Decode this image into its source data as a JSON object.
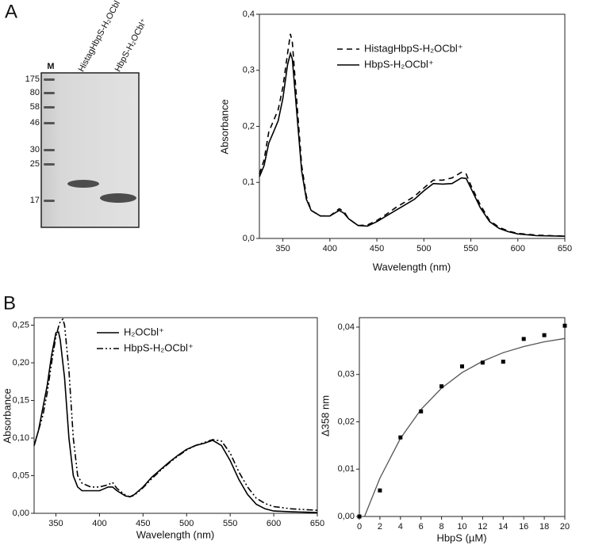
{
  "panel_labels": [
    "A",
    "B"
  ],
  "gel": {
    "marker_lane": "M",
    "lane_labels": [
      "HistagHbpS-H₂OCbl⁺",
      "HbpS-H₂OCbl⁺"
    ],
    "markers": [
      "175",
      "80",
      "58",
      "46",
      "30",
      "25",
      "17"
    ]
  },
  "chart_data": [
    {
      "type": "line",
      "xlabel": "Wavelength (nm)",
      "ylabel": "Absorbance",
      "x": [
        325,
        330,
        335,
        340,
        345,
        350,
        355,
        358,
        360,
        365,
        370,
        375,
        380,
        390,
        400,
        410,
        415,
        420,
        430,
        440,
        450,
        460,
        470,
        480,
        490,
        500,
        510,
        520,
        530,
        540,
        545,
        550,
        560,
        570,
        580,
        590,
        600,
        620,
        650
      ],
      "series": [
        {
          "name": "HistagHbpS-H₂OCbl⁺",
          "color": "#000000",
          "dash": "dashed",
          "values": [
            0.115,
            0.14,
            0.19,
            0.21,
            0.23,
            0.27,
            0.33,
            0.365,
            0.35,
            0.24,
            0.13,
            0.075,
            0.05,
            0.04,
            0.04,
            0.053,
            0.048,
            0.035,
            0.023,
            0.024,
            0.032,
            0.043,
            0.055,
            0.065,
            0.075,
            0.09,
            0.104,
            0.104,
            0.108,
            0.118,
            0.115,
            0.095,
            0.06,
            0.032,
            0.02,
            0.013,
            0.009,
            0.006,
            0.004
          ]
        },
        {
          "name": "HbpS-H₂OCbl⁺",
          "color": "#000000",
          "dash": "solid",
          "values": [
            0.11,
            0.13,
            0.17,
            0.19,
            0.21,
            0.25,
            0.31,
            0.33,
            0.32,
            0.22,
            0.12,
            0.07,
            0.05,
            0.04,
            0.04,
            0.05,
            0.045,
            0.035,
            0.023,
            0.022,
            0.03,
            0.04,
            0.05,
            0.06,
            0.07,
            0.085,
            0.098,
            0.097,
            0.098,
            0.108,
            0.107,
            0.09,
            0.055,
            0.03,
            0.018,
            0.012,
            0.008,
            0.005,
            0.004
          ]
        }
      ],
      "xlim": [
        325,
        650
      ],
      "xticks": [
        350,
        400,
        450,
        500,
        550,
        600,
        650
      ],
      "ylim": [
        0,
        0.4
      ],
      "yticks": [
        {
          "value": 0,
          "label": "0,0"
        },
        {
          "value": 0.1,
          "label": "0,1"
        },
        {
          "value": 0.2,
          "label": "0,2"
        },
        {
          "value": 0.3,
          "label": "0,3"
        },
        {
          "value": 0.4,
          "label": "0,4"
        }
      ],
      "legend": "upper right"
    },
    {
      "type": "line",
      "xlabel": "Wavelength (nm)",
      "ylabel": "Absorbance",
      "x": [
        325,
        330,
        335,
        340,
        345,
        350,
        353,
        355,
        358,
        360,
        365,
        370,
        375,
        380,
        390,
        400,
        410,
        415,
        420,
        430,
        435,
        440,
        450,
        460,
        470,
        480,
        490,
        500,
        510,
        520,
        530,
        540,
        550,
        560,
        570,
        580,
        590,
        600,
        620,
        650
      ],
      "series": [
        {
          "name": "H₂OCbl⁺",
          "color": "#000000",
          "dash": "solid",
          "values": [
            0.09,
            0.11,
            0.14,
            0.17,
            0.21,
            0.24,
            0.241,
            0.23,
            0.2,
            0.18,
            0.1,
            0.05,
            0.035,
            0.03,
            0.03,
            0.03,
            0.035,
            0.035,
            0.03,
            0.023,
            0.022,
            0.025,
            0.035,
            0.048,
            0.058,
            0.068,
            0.077,
            0.085,
            0.09,
            0.093,
            0.097,
            0.09,
            0.07,
            0.045,
            0.025,
            0.012,
            0.006,
            0.003,
            0.002,
            0.001
          ]
        },
        {
          "name": "HbpS-H₂OCbl⁺",
          "color": "#000000",
          "dash": "dash-dot-dot",
          "values": [
            0.09,
            0.11,
            0.13,
            0.16,
            0.2,
            0.235,
            0.248,
            0.255,
            0.258,
            0.25,
            0.19,
            0.1,
            0.05,
            0.04,
            0.035,
            0.035,
            0.038,
            0.041,
            0.033,
            0.024,
            0.022,
            0.024,
            0.034,
            0.046,
            0.057,
            0.067,
            0.076,
            0.084,
            0.09,
            0.094,
            0.098,
            0.096,
            0.08,
            0.055,
            0.035,
            0.02,
            0.013,
            0.009,
            0.006,
            0.004
          ]
        }
      ],
      "xlim": [
        325,
        650
      ],
      "xticks": [
        350,
        400,
        450,
        500,
        550,
        600,
        650
      ],
      "ylim": [
        0,
        0.26
      ],
      "yticks": [
        {
          "value": 0,
          "label": "0,00"
        },
        {
          "value": 0.05,
          "label": "0,05"
        },
        {
          "value": 0.1,
          "label": "0,10"
        },
        {
          "value": 0.15,
          "label": "0,15"
        },
        {
          "value": 0.2,
          "label": "0,20"
        },
        {
          "value": 0.25,
          "label": "0,25"
        }
      ],
      "legend": "upper center"
    },
    {
      "type": "scatter",
      "xlabel": "HbpS (µM)",
      "ylabel": "Δ358 nm",
      "x": [
        0,
        2,
        4,
        6,
        8,
        10,
        12,
        14,
        16,
        18,
        20
      ],
      "values": [
        0,
        0.0055,
        0.0167,
        0.0222,
        0.0275,
        0.0317,
        0.0325,
        0.0327,
        0.0375,
        0.0383,
        0.0403
      ],
      "color": "#000000",
      "fit": {
        "color": "#555555",
        "x": [
          0.5,
          2,
          4,
          6,
          8,
          10,
          12,
          14,
          16,
          18,
          20
        ],
        "values": [
          0,
          0.0081,
          0.0165,
          0.0226,
          0.0271,
          0.0304,
          0.0328,
          0.0346,
          0.0359,
          0.0369,
          0.0376
        ]
      },
      "xlim": [
        0,
        20
      ],
      "xticks": [
        0,
        2,
        4,
        6,
        8,
        10,
        12,
        14,
        16,
        18,
        20
      ],
      "ylim": [
        0,
        0.042
      ],
      "yticks": [
        {
          "value": 0,
          "label": "0,00"
        },
        {
          "value": 0.01,
          "label": "0,01"
        },
        {
          "value": 0.02,
          "label": "0,02"
        },
        {
          "value": 0.03,
          "label": "0,03"
        },
        {
          "value": 0.04,
          "label": "0,04"
        }
      ]
    }
  ]
}
